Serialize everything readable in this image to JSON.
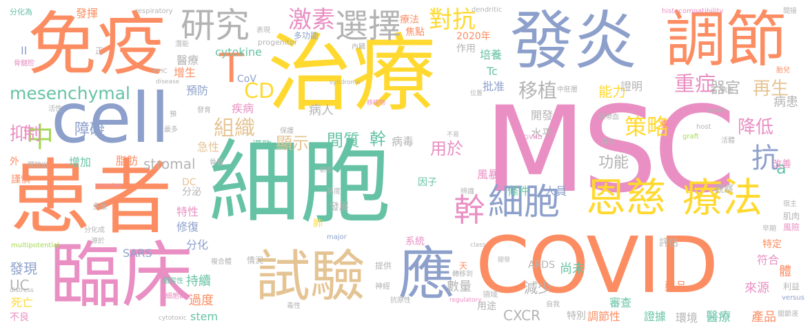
{
  "colors": {
    "pink": "#e98fc3",
    "green": "#66c2a5",
    "orange": "#fc8d62",
    "blue": "#8da0cb",
    "yellow": "#ffd92f",
    "lime": "#a6d854",
    "tan": "#e5c494",
    "gray": "#b3b3b3"
  },
  "words": [
    {
      "text": "MSC",
      "color": "pink"
    },
    {
      "text": "細胞",
      "color": "green"
    },
    {
      "text": "治療",
      "color": "yellow"
    },
    {
      "text": "患者",
      "color": "orange"
    },
    {
      "text": "免疫",
      "color": "orange"
    },
    {
      "text": "COVID",
      "color": "orange"
    },
    {
      "text": "cell",
      "color": "blue"
    },
    {
      "text": "發炎",
      "color": "blue"
    },
    {
      "text": "臨床",
      "color": "pink"
    },
    {
      "text": "調節",
      "color": "orange"
    },
    {
      "text": "試驗",
      "color": "tan"
    },
    {
      "text": "應",
      "color": "blue"
    },
    {
      "text": "恩慈",
      "color": "yellow"
    },
    {
      "text": "療法",
      "color": "yellow"
    },
    {
      "text": "細胞",
      "color": "blue"
    },
    {
      "text": "幹",
      "color": "pink"
    },
    {
      "text": "研究",
      "color": "gray"
    },
    {
      "text": "選擇",
      "color": "gray"
    },
    {
      "text": "激素",
      "color": "pink"
    },
    {
      "text": "對抗",
      "color": "yellow"
    },
    {
      "text": "T",
      "color": "orange"
    },
    {
      "text": "mesenchymal",
      "color": "green"
    },
    {
      "text": "組織",
      "color": "tan"
    },
    {
      "text": "中",
      "color": "lime"
    },
    {
      "text": "抑制",
      "color": "pink"
    },
    {
      "text": "CD",
      "color": "yellow"
    },
    {
      "text": "策略",
      "color": "yellow"
    },
    {
      "text": "重症",
      "color": "pink"
    },
    {
      "text": "再生",
      "color": "tan"
    },
    {
      "text": "移植",
      "color": "gray"
    },
    {
      "text": "抗",
      "color": "blue"
    },
    {
      "text": "降低",
      "color": "pink"
    },
    {
      "text": "間質",
      "color": "green"
    },
    {
      "text": "幹",
      "color": "green"
    },
    {
      "text": "顯示",
      "color": "tan"
    },
    {
      "text": "用於",
      "color": "pink"
    },
    {
      "text": "病毒",
      "color": "gray"
    },
    {
      "text": "障礙",
      "color": "blue"
    },
    {
      "text": "能力",
      "color": "yellow"
    },
    {
      "text": "功能",
      "color": "gray"
    },
    {
      "text": "器官",
      "color": "gray"
    },
    {
      "text": "病患",
      "color": "gray"
    },
    {
      "text": "a",
      "color": "green"
    },
    {
      "text": "stromal",
      "color": "gray"
    },
    {
      "text": "cytokine",
      "color": "green"
    },
    {
      "text": "醫療",
      "color": "gray"
    },
    {
      "text": "預防",
      "color": "blue"
    },
    {
      "text": "增生",
      "color": "orange"
    },
    {
      "text": "疾病",
      "color": "pink"
    },
    {
      "text": "病人",
      "color": "gray"
    },
    {
      "text": "開發",
      "color": "gray"
    },
    {
      "text": "水平",
      "color": "gray"
    },
    {
      "text": "證明",
      "color": "gray"
    },
    {
      "text": "批准",
      "color": "blue"
    },
    {
      "text": "Tc",
      "color": "green"
    },
    {
      "text": "培養",
      "color": "green"
    },
    {
      "text": "2020年",
      "color": "orange"
    },
    {
      "text": "發揮",
      "color": "orange"
    },
    {
      "text": "分化為",
      "color": "green"
    },
    {
      "text": "急性",
      "color": "tan"
    },
    {
      "text": "增加",
      "color": "green"
    },
    {
      "text": "脂肪",
      "color": "orange"
    },
    {
      "text": "外",
      "color": "orange"
    },
    {
      "text": "DC",
      "color": "tan"
    },
    {
      "text": "分泌",
      "color": "gray"
    },
    {
      "text": "特性",
      "color": "pink"
    },
    {
      "text": "修復",
      "color": "blue"
    },
    {
      "text": "分化",
      "color": "blue"
    },
    {
      "text": "SARS",
      "color": "blue"
    },
    {
      "text": "發現",
      "color": "blue"
    },
    {
      "text": "UC",
      "color": "gray"
    },
    {
      "text": "死亡",
      "color": "yellow"
    },
    {
      "text": "不良",
      "color": "pink"
    },
    {
      "text": "持續",
      "color": "green"
    },
    {
      "text": "過度",
      "color": "orange"
    },
    {
      "text": "stem",
      "color": "green"
    },
    {
      "text": "數量",
      "color": "gray"
    },
    {
      "text": "減少",
      "color": "gray"
    },
    {
      "text": "尚未",
      "color": "green"
    },
    {
      "text": "ARDS",
      "color": "gray"
    },
    {
      "text": "CXCR",
      "color": "gray"
    },
    {
      "text": "風暴",
      "color": "pink"
    },
    {
      "text": "條件",
      "color": "green"
    },
    {
      "text": "人員",
      "color": "blue"
    },
    {
      "text": "因子",
      "color": "green"
    },
    {
      "text": "發展",
      "color": "gray"
    },
    {
      "text": "肺",
      "color": "yellow"
    },
    {
      "text": "系統",
      "color": "pink"
    },
    {
      "text": "來源",
      "color": "pink"
    },
    {
      "text": "審查",
      "color": "green"
    },
    {
      "text": "藥品",
      "color": "orange"
    },
    {
      "text": "調節性",
      "color": "orange"
    },
    {
      "text": "證據",
      "color": "green"
    },
    {
      "text": "環境",
      "color": "gray"
    },
    {
      "text": "醫療",
      "color": "green"
    },
    {
      "text": "產品",
      "color": "orange"
    },
    {
      "text": "特別",
      "color": "gray"
    },
    {
      "text": "用途",
      "color": "gray"
    },
    {
      "text": "符合",
      "color": "pink"
    },
    {
      "text": "評估",
      "color": "gray"
    },
    {
      "text": "特定",
      "color": "orange"
    },
    {
      "text": "改善",
      "color": "pink"
    },
    {
      "text": "導致",
      "color": "green"
    },
    {
      "text": "CoV",
      "color": "blue"
    },
    {
      "text": "焦點",
      "color": "orange"
    },
    {
      "text": "療法",
      "color": "orange"
    },
    {
      "text": "作用",
      "color": "gray"
    },
    {
      "text": "II",
      "color": "blue"
    },
    {
      "text": "正",
      "color": "gray"
    },
    {
      "text": "情況",
      "color": "gray"
    },
    {
      "text": "天",
      "color": "orange"
    },
    {
      "text": "提供",
      "color": "gray"
    },
    {
      "text": "觀察",
      "color": "gray"
    },
    {
      "text": "多功能",
      "color": "blue"
    },
    {
      "text": "progenitor",
      "color": "gray"
    },
    {
      "text": "respiratory",
      "color": "gray"
    },
    {
      "text": "dendritic",
      "color": "gray"
    },
    {
      "text": "histocompatibility",
      "color": "pink"
    },
    {
      "text": "間接",
      "color": "gray"
    },
    {
      "text": "骨髓腔",
      "color": "pink"
    },
    {
      "text": "MHC",
      "color": "gray"
    },
    {
      "text": "disease",
      "color": "gray"
    },
    {
      "text": "syndrome",
      "color": "gray"
    },
    {
      "text": "潛在",
      "color": "gray"
    },
    {
      "text": "host",
      "color": "gray"
    },
    {
      "text": "graft",
      "color": "lime"
    },
    {
      "text": "acute",
      "color": "gray"
    },
    {
      "text": "GVHD",
      "color": "pink"
    },
    {
      "text": "complex",
      "color": "pink"
    },
    {
      "text": "multipotential",
      "color": "lime"
    },
    {
      "text": "major",
      "color": "blue"
    },
    {
      "text": "class",
      "color": "gray"
    },
    {
      "text": "distress",
      "color": "gray"
    },
    {
      "text": "versus",
      "color": "blue"
    },
    {
      "text": "regulatory",
      "color": "pink"
    },
    {
      "text": "cytotoxic",
      "color": "gray"
    },
    {
      "text": "體",
      "color": "orange"
    },
    {
      "text": "利益",
      "color": "gray"
    },
    {
      "text": "風險",
      "color": "pink"
    },
    {
      "text": "肌肉",
      "color": "gray"
    },
    {
      "text": "宿主",
      "color": "gray"
    },
    {
      "text": "關節液",
      "color": "gray"
    },
    {
      "text": "胎兒",
      "color": "orange"
    },
    {
      "text": "早期",
      "color": "gray"
    },
    {
      "text": "神經",
      "color": "gray"
    },
    {
      "text": "領域",
      "color": "gray"
    },
    {
      "text": "自我",
      "color": "gray"
    },
    {
      "text": "活體",
      "color": "gray"
    },
    {
      "text": "臍帶血",
      "color": "gray"
    },
    {
      "text": "相容性",
      "color": "green"
    },
    {
      "text": "複合體",
      "color": "gray"
    },
    {
      "text": "細胞群",
      "color": "pink"
    },
    {
      "text": "多重",
      "color": "gray"
    },
    {
      "text": "源於",
      "color": "gray"
    },
    {
      "text": "謹慎",
      "color": "orange"
    },
    {
      "text": "分化成",
      "color": "gray"
    },
    {
      "text": "高度",
      "color": "gray"
    },
    {
      "text": "辨識",
      "color": "gray"
    },
    {
      "text": "最多",
      "color": "gray"
    },
    {
      "text": "預",
      "color": "gray"
    },
    {
      "text": "骨骼",
      "color": "gray"
    },
    {
      "text": "活性",
      "color": "gray"
    },
    {
      "text": "釋放出",
      "color": "gray"
    },
    {
      "text": "發育",
      "color": "gray"
    },
    {
      "text": "保護",
      "color": "gray"
    },
    {
      "text": "表現",
      "color": "gray"
    },
    {
      "text": "內臟",
      "color": "gray"
    },
    {
      "text": "中胚層",
      "color": "gray"
    },
    {
      "text": "潛能",
      "color": "gray"
    },
    {
      "text": "毒性",
      "color": "gray"
    },
    {
      "text": "抗原性",
      "color": "gray"
    },
    {
      "text": "轉移到",
      "color": "gray"
    },
    {
      "text": "更",
      "color": "orange"
    },
    {
      "text": "位置",
      "color": "gray"
    },
    {
      "text": "開發",
      "color": "gray"
    },
    {
      "text": "不易",
      "color": "gray"
    },
    {
      "text": "新型",
      "color": "gray"
    },
    {
      "text": "移植物",
      "color": "pink"
    },
    {
      "text": "病患",
      "color": "gray"
    }
  ]
}
